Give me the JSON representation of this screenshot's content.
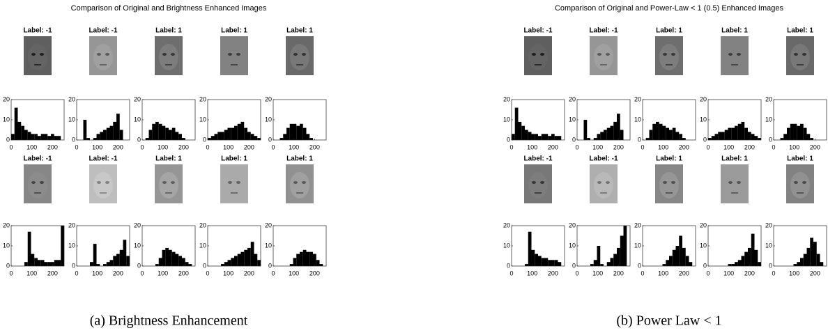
{
  "panels": [
    {
      "title": "Comparison of Original and Brightness Enhanced Images",
      "caption": "(a) Brightness Enhancement",
      "groups": [
        {
          "labels": [
            "Label: -1",
            "Label: -1",
            "Label: 1",
            "Label: 1",
            "Label: 1"
          ],
          "histograms": [
            {
              "counts": [
                3,
                16,
                9,
                7,
                5,
                4,
                3,
                3,
                2,
                3,
                3,
                2,
                3,
                2,
                2,
                0
              ]
            },
            {
              "counts": [
                0,
                0,
                10,
                1,
                0,
                1,
                3,
                4,
                5,
                6,
                7,
                9,
                13,
                5,
                0,
                0
              ]
            },
            {
              "counts": [
                0,
                1,
                5,
                8,
                9,
                8,
                7,
                6,
                5,
                6,
                4,
                3,
                1,
                0,
                0,
                0
              ]
            },
            {
              "counts": [
                1,
                2,
                3,
                4,
                4,
                5,
                6,
                6,
                7,
                8,
                9,
                6,
                4,
                3,
                2,
                1
              ]
            },
            {
              "counts": [
                0,
                0,
                1,
                3,
                6,
                8,
                8,
                7,
                8,
                6,
                3,
                1,
                0,
                0,
                0,
                0
              ]
            }
          ]
        },
        {
          "labels": [
            "Label: -1",
            "Label: -1",
            "Label: 1",
            "Label: 1",
            "Label: 1"
          ],
          "histograms": [
            {
              "counts": [
                0,
                0,
                0,
                0,
                2,
                17,
                6,
                4,
                3,
                3,
                2,
                2,
                2,
                3,
                3,
                20
              ]
            },
            {
              "counts": [
                0,
                0,
                0,
                0,
                2,
                11,
                1,
                0,
                1,
                2,
                3,
                5,
                6,
                8,
                13,
                5
              ]
            },
            {
              "counts": [
                0,
                0,
                0,
                0,
                1,
                4,
                8,
                9,
                8,
                7,
                6,
                5,
                4,
                2,
                1,
                0
              ]
            },
            {
              "counts": [
                0,
                0,
                0,
                0,
                1,
                2,
                3,
                4,
                5,
                6,
                7,
                8,
                9,
                12,
                6,
                3
              ]
            },
            {
              "counts": [
                0,
                0,
                0,
                0,
                0,
                1,
                4,
                6,
                7,
                8,
                7,
                7,
                6,
                3,
                1,
                0
              ]
            }
          ]
        }
      ]
    },
    {
      "title": "Comparison of Original and Power-Law < 1 (0.5) Enhanced Images",
      "caption": "(b) Power Law < 1",
      "groups": [
        {
          "labels": [
            "Label: -1",
            "Label: -1",
            "Label: 1",
            "Label: 1",
            "Label: 1"
          ],
          "histograms": [
            {
              "counts": [
                3,
                16,
                9,
                7,
                5,
                4,
                3,
                3,
                2,
                3,
                3,
                2,
                3,
                2,
                2,
                0
              ]
            },
            {
              "counts": [
                0,
                0,
                10,
                1,
                0,
                1,
                3,
                4,
                5,
                6,
                7,
                9,
                13,
                5,
                0,
                0
              ]
            },
            {
              "counts": [
                0,
                1,
                5,
                8,
                9,
                8,
                7,
                6,
                5,
                6,
                4,
                3,
                1,
                0,
                0,
                0
              ]
            },
            {
              "counts": [
                1,
                2,
                3,
                4,
                4,
                5,
                6,
                6,
                7,
                8,
                9,
                6,
                4,
                3,
                2,
                1
              ]
            },
            {
              "counts": [
                0,
                0,
                1,
                3,
                6,
                8,
                8,
                7,
                8,
                6,
                3,
                1,
                0,
                0,
                0,
                0
              ]
            }
          ]
        },
        {
          "labels": [
            "Label: -1",
            "Label: -1",
            "Label: 1",
            "Label: 1",
            "Label: 1"
          ],
          "histograms": [
            {
              "counts": [
                0,
                0,
                0,
                0,
                1,
                17,
                8,
                6,
                5,
                4,
                4,
                3,
                3,
                3,
                2,
                0
              ]
            },
            {
              "counts": [
                0,
                0,
                0,
                0,
                1,
                3,
                10,
                1,
                0,
                2,
                4,
                6,
                9,
                15,
                20,
                0
              ]
            },
            {
              "counts": [
                0,
                0,
                0,
                0,
                0,
                0,
                1,
                3,
                5,
                8,
                10,
                15,
                9,
                5,
                2,
                0
              ]
            },
            {
              "counts": [
                0,
                0,
                0,
                0,
                0,
                0,
                1,
                1,
                2,
                3,
                5,
                7,
                9,
                16,
                8,
                2
              ]
            },
            {
              "counts": [
                0,
                0,
                0,
                0,
                0,
                0,
                1,
                2,
                4,
                6,
                9,
                14,
                12,
                6,
                2,
                0
              ]
            }
          ]
        }
      ]
    }
  ],
  "hist": {
    "type": "histogram",
    "bins": [
      0,
      16,
      32,
      48,
      64,
      80,
      96,
      112,
      128,
      144,
      160,
      176,
      192,
      208,
      224,
      240,
      256
    ],
    "xlim": [
      0,
      256
    ],
    "ylim": [
      0,
      20
    ],
    "xticks": [
      0,
      100,
      200
    ],
    "yticks": [
      0,
      10,
      20
    ],
    "color": "#000000"
  }
}
